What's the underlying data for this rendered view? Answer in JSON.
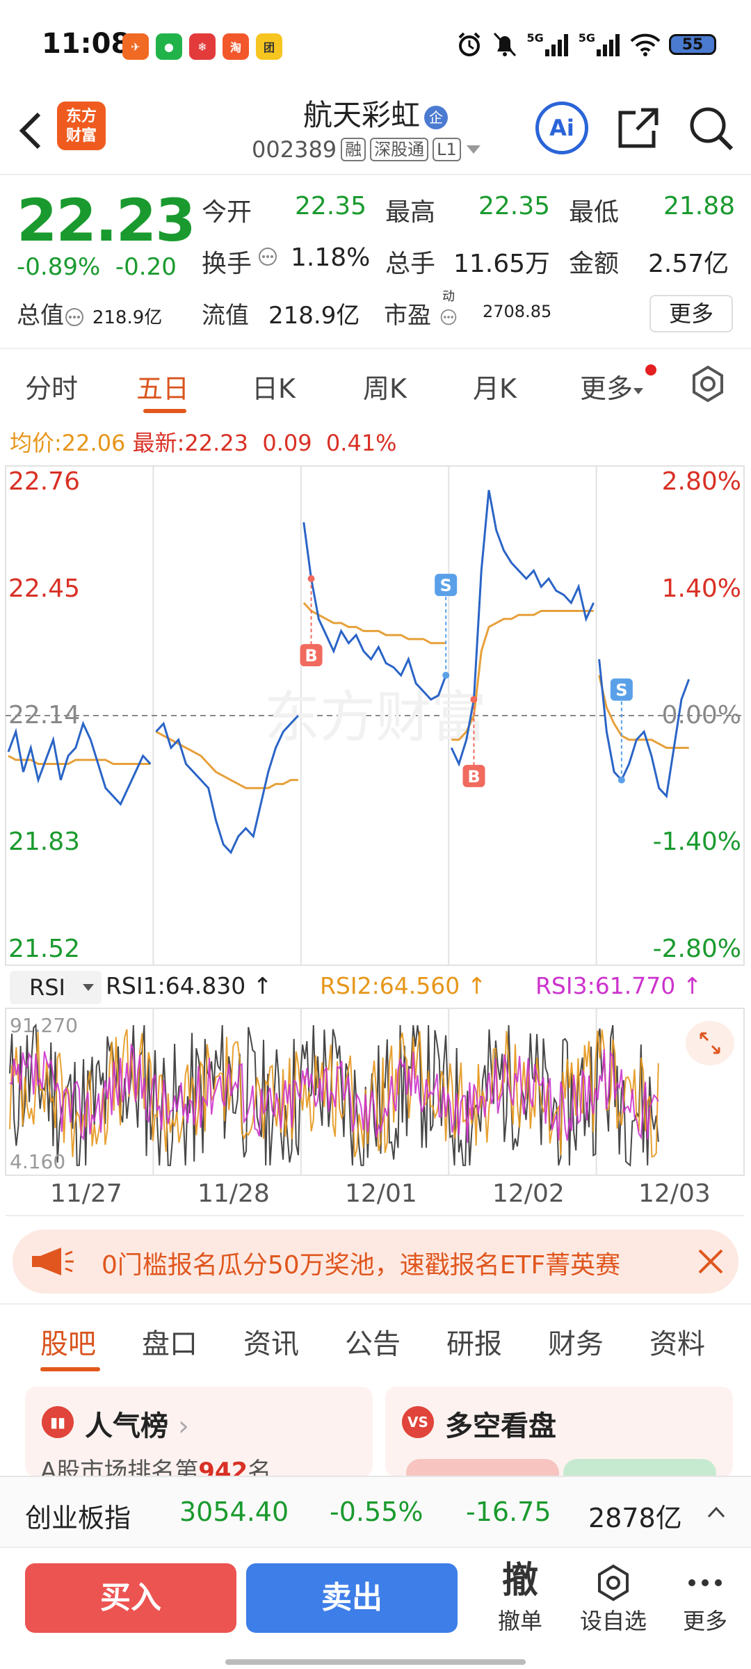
{
  "status_bar": {
    "time": "11:08",
    "apps": [
      {
        "icon": "telegram-icon",
        "color": "#f06a23",
        "glyph": "✈"
      },
      {
        "icon": "wechat-icon",
        "color": "#21b34a",
        "glyph": "●"
      },
      {
        "icon": "snowball-icon",
        "color": "#e33b3b",
        "glyph": "❄"
      },
      {
        "icon": "taobao-icon",
        "color": "#f2582b",
        "glyph": "淘"
      },
      {
        "icon": "meituan-icon",
        "color": "#f7c520",
        "glyph": "团"
      }
    ],
    "signal_label_1": "5G",
    "signal_label_2": "5G",
    "battery": "55"
  },
  "header": {
    "logo_line1": "东方",
    "logo_line2": "财富",
    "stock_name": "航天彩虹",
    "name_badge": "企",
    "stock_code": "002389",
    "tags": [
      "融",
      "深股通",
      "L1"
    ],
    "ai_label": "Ai"
  },
  "quote": {
    "price": "22.23",
    "change_pct": "-0.89%",
    "change_abs": "-0.20",
    "row1": {
      "open_label": "今开",
      "open": "22.35",
      "high_label": "最高",
      "high": "22.35",
      "low_label": "最低",
      "low": "21.88"
    },
    "row2": {
      "turnover_label": "换手",
      "turnover": "1.18%",
      "volume_label": "总手",
      "volume": "11.65万",
      "amount_label": "金额",
      "amount": "2.57亿"
    },
    "row3": {
      "total_label": "总值",
      "total": "218.9亿",
      "float_label": "流值",
      "float": "218.9亿",
      "pe_label": "市盈",
      "pe_sup": "动",
      "pe": "2708.85"
    },
    "more_label": "更多"
  },
  "tabs": [
    "分时",
    "五日",
    "日K",
    "周K",
    "月K",
    "更多"
  ],
  "avg_line": {
    "avg_label": "均价:",
    "avg": "22.06",
    "latest_label": "最新:",
    "latest": "22.23",
    "change_abs": "0.09",
    "change_pct": "0.41%"
  },
  "chart_data": {
    "type": "line",
    "title": "",
    "x_labels": [
      "11/27",
      "11/28",
      "12/01",
      "12/02",
      "12/03"
    ],
    "y_left_ticks": [
      "22.76",
      "22.45",
      "22.14",
      "21.83",
      "21.52"
    ],
    "y_right_ticks": [
      "2.80%",
      "1.40%",
      "0.00%",
      "-1.40%",
      "-2.80%"
    ],
    "ylim": [
      21.52,
      22.76
    ],
    "prev_close": 22.14,
    "days": [
      {
        "date": "11/27",
        "price": [
          22.05,
          22.1,
          22.0,
          22.06,
          21.98,
          22.03,
          22.08,
          21.98,
          22.04,
          22.06,
          22.12,
          22.08,
          22.02,
          21.96,
          21.94,
          21.92,
          21.96,
          22.0,
          22.04,
          22.02
        ],
        "avg": [
          22.04,
          22.03,
          22.03,
          22.03,
          22.02,
          22.02,
          22.02,
          22.02,
          22.02,
          22.03,
          22.03,
          22.03,
          22.03,
          22.03,
          22.02,
          22.02,
          22.02,
          22.02,
          22.02,
          22.02
        ]
      },
      {
        "date": "11/28",
        "price": [
          22.1,
          22.12,
          22.06,
          22.08,
          22.02,
          22.0,
          21.98,
          21.96,
          21.88,
          21.82,
          21.8,
          21.84,
          21.86,
          21.84,
          21.92,
          22.0,
          22.06,
          22.1,
          22.12,
          22.14
        ],
        "avg": [
          22.1,
          22.09,
          22.08,
          22.07,
          22.06,
          22.05,
          22.04,
          22.02,
          22.0,
          21.99,
          21.98,
          21.97,
          21.96,
          21.96,
          21.96,
          21.96,
          21.97,
          21.97,
          21.98,
          21.98
        ]
      },
      {
        "date": "12/01",
        "price": [
          22.62,
          22.48,
          22.38,
          22.34,
          22.3,
          22.35,
          22.32,
          22.34,
          22.3,
          22.28,
          22.31,
          22.27,
          22.26,
          22.24,
          22.28,
          22.22,
          22.2,
          22.18,
          22.19,
          22.24
        ],
        "avg": [
          22.42,
          22.4,
          22.39,
          22.38,
          22.37,
          22.37,
          22.36,
          22.36,
          22.35,
          22.35,
          22.35,
          22.34,
          22.34,
          22.34,
          22.33,
          22.33,
          22.33,
          22.32,
          22.32,
          22.32
        ]
      },
      {
        "date": "12/02",
        "price": [
          22.06,
          22.02,
          22.08,
          22.18,
          22.5,
          22.7,
          22.6,
          22.55,
          22.52,
          22.5,
          22.48,
          22.5,
          22.46,
          22.48,
          22.45,
          22.44,
          22.42,
          22.46,
          22.38,
          22.42
        ],
        "avg": [
          22.08,
          22.08,
          22.1,
          22.14,
          22.3,
          22.36,
          22.37,
          22.38,
          22.38,
          22.39,
          22.39,
          22.39,
          22.4,
          22.4,
          22.4,
          22.4,
          22.4,
          22.4,
          22.4,
          22.4
        ]
      },
      {
        "date": "12/03",
        "price": [
          22.28,
          22.1,
          22.0,
          21.98,
          22.02,
          22.08,
          22.1,
          22.04,
          21.96,
          21.94,
          22.06,
          22.18,
          22.23
        ],
        "avg": [
          22.24,
          22.16,
          22.12,
          22.09,
          22.08,
          22.08,
          22.08,
          22.08,
          22.07,
          22.06,
          22.06,
          22.06,
          22.06
        ]
      }
    ],
    "trade_markers": [
      {
        "label": "B",
        "day": "12/01"
      },
      {
        "label": "S",
        "day": "12/01"
      },
      {
        "label": "B",
        "day": "12/02"
      },
      {
        "label": "S",
        "day": "12/03"
      }
    ]
  },
  "rsi": {
    "select_label": "RSI",
    "rsi1": "RSI1:64.830",
    "rsi2": "RSI2:64.560",
    "rsi3": "RSI3:61.770",
    "max_label": "91.270",
    "min_label": "4.160"
  },
  "banner": {
    "text": "0门槛报名瓜分50万奖池，速戳报名ETF菁英赛"
  },
  "bottom_tabs": [
    "股吧",
    "盘口",
    "资讯",
    "公告",
    "研报",
    "财务",
    "资料"
  ],
  "cards": [
    {
      "icon": "popularity-chart-icon",
      "icon_glyph": "▮▮",
      "title": "人气榜",
      "sub_prefix": "A股市场排名第",
      "sub_num": "942",
      "sub_suffix": "名"
    },
    {
      "icon": "versus-icon",
      "icon_glyph": "VS",
      "title": "多空看盘"
    }
  ],
  "index_bar": {
    "name": "创业板指",
    "value": "3054.40",
    "pct": "-0.55%",
    "abs": "-16.75",
    "turnover": "2878亿"
  },
  "actions": {
    "buy": "买入",
    "sell": "卖出",
    "cancel_glyph": "撤",
    "cancel": "撤单",
    "watch": "设自选",
    "more": "更多"
  },
  "colors": {
    "up": "#d93025",
    "down": "#1a9a2e",
    "price_line": "#2a64c6",
    "avg_line": "#e6a03a",
    "accent": "#e2581a"
  }
}
